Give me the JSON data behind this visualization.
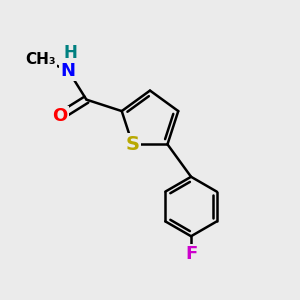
{
  "bg_color": "#ebebeb",
  "atom_colors": {
    "S": "#b8a800",
    "N": "#0000ff",
    "O": "#ff0000",
    "F": "#cc00cc",
    "H": "#008080",
    "C": "#000000"
  },
  "bond_color": "#000000",
  "bond_width": 1.8,
  "font_size": 13,
  "figsize": [
    3.0,
    3.0
  ],
  "dpi": 100,
  "xlim": [
    0,
    10
  ],
  "ylim": [
    0,
    10
  ]
}
